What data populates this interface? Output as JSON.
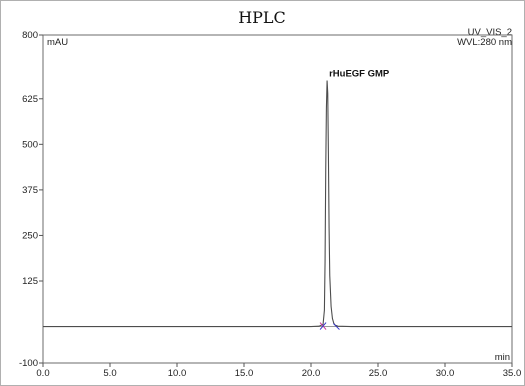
{
  "chart_data": {
    "type": "line",
    "title": "HPLC",
    "channel_label": "UV_VIS_2",
    "wavelength_label": "WVL:280 nm",
    "ylabel": "mAU",
    "xlabel": "min",
    "xlim": [
      0.0,
      35.0
    ],
    "ylim": [
      -100,
      800
    ],
    "x_ticks": [
      0.0,
      5.0,
      10.0,
      15.0,
      20.0,
      25.0,
      30.0,
      35.0
    ],
    "x_tick_labels": [
      "0.0",
      "5.0",
      "10.0",
      "15.0",
      "20.0",
      "25.0",
      "30.0",
      "35.0"
    ],
    "y_ticks": [
      -100,
      125,
      250,
      375,
      500,
      625,
      800
    ],
    "y_tick_labels": [
      "-100",
      "125",
      "250",
      "375",
      "500",
      "625",
      "800"
    ],
    "grid": false,
    "baseline": 0,
    "series": [
      {
        "color": "#4d4d4d",
        "x": [
          0.0,
          5.0,
          10.0,
          15.0,
          20.0,
          20.6,
          20.9,
          21.0,
          21.05,
          21.1,
          21.15,
          21.2,
          21.25,
          21.3,
          21.35,
          21.4,
          21.5,
          21.6,
          21.7,
          21.8,
          22.0,
          23.0,
          30.0,
          35.0
        ],
        "y": [
          0,
          0,
          0,
          0,
          0,
          1,
          6,
          45,
          180,
          430,
          600,
          675,
          640,
          470,
          270,
          140,
          55,
          22,
          9,
          4,
          1,
          0,
          0,
          0
        ]
      }
    ],
    "peaks": [
      {
        "label": "rHuEGF GMP",
        "x": 21.2,
        "y": 675
      }
    ],
    "integration_marker_color": "#3333cc",
    "integration_marker_alt_color": "#cc3399"
  }
}
